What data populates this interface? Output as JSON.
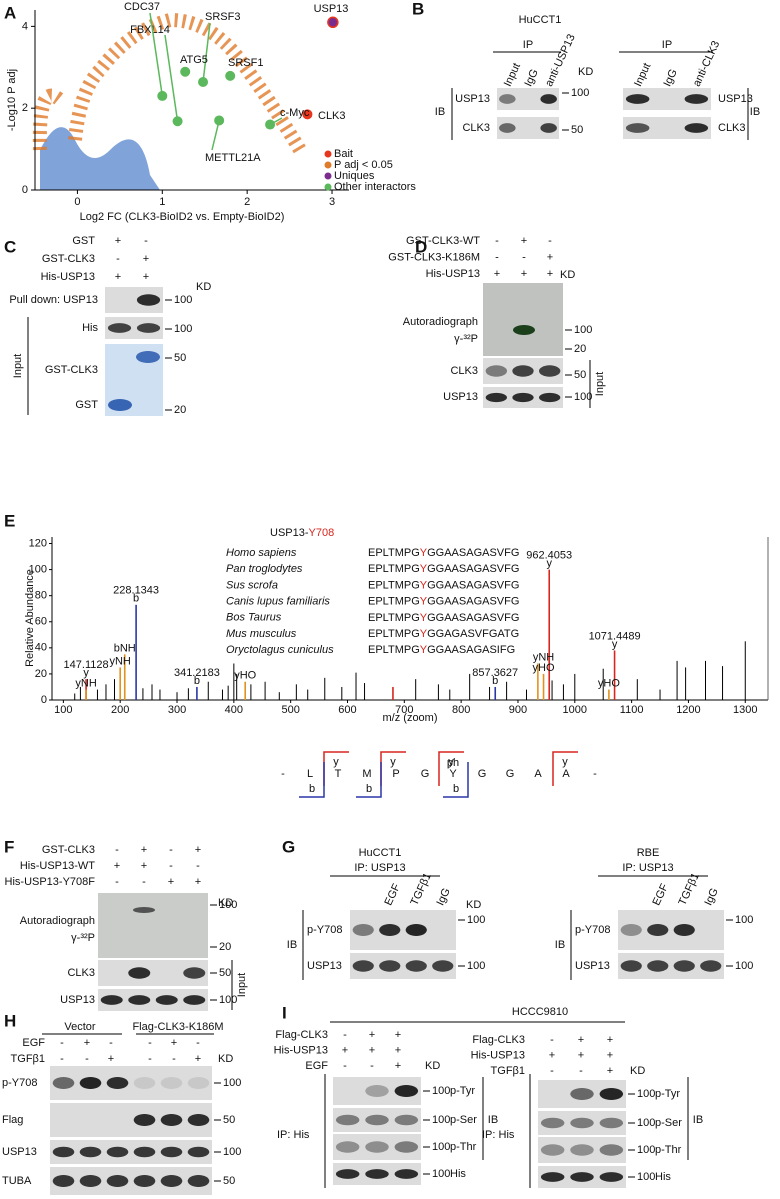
{
  "A": {
    "letter": "A",
    "chart": {
      "type": "scatter",
      "ylabel": "-Log10 P adj",
      "xlabel": "Log2 FC (CLK3-BioID2 vs. Empty-BioID2)",
      "xlim": [
        -0.5,
        3.2
      ],
      "ylim": [
        0,
        4.4
      ],
      "xticks": [
        0,
        1,
        2,
        3
      ],
      "yticks": [
        0,
        2,
        4
      ],
      "points": [
        {
          "name": "USP13",
          "x": 3.01,
          "y": 4.1,
          "color": "#7b2d8e"
        },
        {
          "name": "CLK3",
          "x": 2.71,
          "y": 1.85,
          "color": "#e8361e"
        },
        {
          "name": "c-Myc",
          "x": 2.27,
          "y": 1.6,
          "color": "#5cb85c"
        },
        {
          "name": "SRSF1",
          "x": 1.8,
          "y": 2.79,
          "color": "#5cb85c"
        },
        {
          "name": "SRSF3",
          "x": 1.48,
          "y": 2.64,
          "color": "#5cb85c"
        },
        {
          "name": "ATG5",
          "x": 1.27,
          "y": 2.89,
          "color": "#5cb85c"
        },
        {
          "name": "FBXL14",
          "x": 1.18,
          "y": 1.68,
          "color": "#5cb85c"
        },
        {
          "name": "CDC37",
          "x": 1.0,
          "y": 2.3,
          "color": "#5cb85c"
        },
        {
          "name": "METTL21A",
          "x": 1.67,
          "y": 1.7,
          "color": "#5cb85c"
        }
      ],
      "legend": [
        {
          "label": "Bait",
          "color": "#e8361e"
        },
        {
          "label": "P adj < 0.05",
          "color": "#e07b2a"
        },
        {
          "label": "Uniques",
          "color": "#7b2d8e"
        },
        {
          "label": "Other interactors",
          "color": "#5cb85c"
        }
      ]
    }
  },
  "B": {
    "letter": "B",
    "cell": "HuCCT1",
    "ip": [
      "IP",
      "IP"
    ],
    "lanes": [
      [
        "Input",
        "IgG",
        "anti-USP13"
      ],
      [
        "Input",
        "IgG",
        "anti-CLK3"
      ]
    ],
    "kd": "KD",
    "markers": [
      100,
      50
    ],
    "rows_left": [
      "USP13",
      "CLK3"
    ],
    "rows_right": [
      "USP13",
      "CLK3"
    ],
    "ib": [
      "IB",
      "IB"
    ]
  },
  "C": {
    "letter": "C",
    "conditions": [
      {
        "label": "GST",
        "signs": [
          "+",
          "-"
        ]
      },
      {
        "label": "GST-CLK3",
        "signs": [
          "-",
          "+"
        ]
      },
      {
        "label": "His-USP13",
        "signs": [
          "+",
          "+"
        ]
      }
    ],
    "kd": "KD",
    "pulldown": "Pull down: USP13",
    "his": "His",
    "gst_clk3": "GST-CLK3",
    "gst": "GST",
    "input": "Input",
    "markers": [
      100,
      100,
      50,
      20
    ]
  },
  "D": {
    "letter": "D",
    "conditions": [
      {
        "label": "GST-CLK3-WT",
        "signs": [
          "-",
          "+",
          "-"
        ]
      },
      {
        "label": "GST-CLK3-K186M",
        "signs": [
          "-",
          "-",
          "+"
        ]
      },
      {
        "label": "His-USP13",
        "signs": [
          "+",
          "+",
          "+"
        ]
      }
    ],
    "kd": "KD",
    "autorad": "Autoradiograph",
    "isotope": "γ-³²P",
    "markers": [
      100,
      20,
      50,
      100
    ],
    "rows": [
      "CLK3",
      "USP13"
    ],
    "input": "Input"
  },
  "E": {
    "letter": "E",
    "title_prefix": "USP13-",
    "title_site": "Y708",
    "alignment": [
      {
        "species": "Homo sapiens",
        "sequence": "EPLTMPGYGGAASAGASVFG"
      },
      {
        "species": "Pan troglodytes",
        "sequence": "EPLTMPGYGGAASAGASVFG"
      },
      {
        "species": "Sus scrofa",
        "sequence": "EPLTMPGYGGAASAGASVFG"
      },
      {
        "species": "Canis lupus familiaris",
        "sequence": "EPLTMPGYGGAASAGASVFG"
      },
      {
        "species": "Bos Taurus",
        "sequence": "EPLTMPGYGGAASAGASVFG"
      },
      {
        "species": "Mus musculus",
        "sequence": "EPLTMPGYGGAGASVFGATG"
      },
      {
        "species": "Oryctolagus cuniculus",
        "sequence": "EPLTMPGYGGAASAGASIFG"
      }
    ],
    "chart": {
      "type": "spectrum",
      "xlabel": "m/z (zoom)",
      "ylabel": "Relative Abundance",
      "xlim": [
        80,
        1340
      ],
      "ylim": [
        0,
        125
      ],
      "xticks": [
        100,
        200,
        300,
        400,
        500,
        600,
        700,
        800,
        900,
        1000,
        1100,
        1200,
        1300
      ],
      "yticks": [
        0,
        20,
        40,
        60,
        80,
        100,
        120
      ],
      "peak_series": [
        {
          "color": "#000000",
          "x": [
            120,
            130,
            160,
            175,
            190,
            240,
            256,
            270,
            300,
            320,
            355,
            380,
            390,
            400,
            405,
            430,
            455,
            480,
            510,
            530,
            560,
            590,
            615,
            630,
            720,
            760,
            780,
            815,
            850,
            880,
            915,
            960,
            980,
            1000,
            1050,
            1110,
            1150,
            1180,
            1195,
            1230,
            1260,
            1300
          ],
          "y": [
            5,
            10,
            8,
            12,
            16,
            9,
            12,
            8,
            6,
            9,
            14,
            8,
            11,
            28,
            20,
            12,
            14,
            6,
            12,
            8,
            17,
            10,
            21,
            13,
            16,
            12,
            8,
            20,
            10,
            14,
            8,
            15,
            12,
            20,
            24,
            16,
            8,
            30,
            25,
            30,
            26,
            45
          ]
        },
        {
          "color": "#d7261e",
          "x": [
            140,
            680,
            955,
            1070
          ],
          "y": [
            16,
            10,
            100,
            38
          ]
        },
        {
          "color": "#2a36a8",
          "x": [
            228,
            335,
            860
          ],
          "y": [
            73,
            10,
            10
          ]
        },
        {
          "color": "#e0921e",
          "x": [
            140,
            200,
            208,
            420,
            935,
            945,
            1060
          ],
          "y": [
            8,
            25,
            35,
            14,
            28,
            20,
            8
          ]
        }
      ],
      "annotations": [
        {
          "text": "b",
          "mass": "228.1343",
          "x": 228,
          "y": 73,
          "color": "#2a36a8"
        },
        {
          "text": "y",
          "mass": "962.4053",
          "x": 955,
          "y": 100,
          "color": "#d7261e"
        },
        {
          "text": "y",
          "mass": "1071.4489",
          "x": 1070,
          "y": 38,
          "color": "#d7261e"
        },
        {
          "text": "y",
          "mass": "147.1128",
          "x": 140,
          "y": 16,
          "color": "#d7261e"
        },
        {
          "text": "b",
          "mass": "341.2183",
          "x": 335,
          "y": 10,
          "color": "#2a36a8"
        },
        {
          "text": "b",
          "mass": "857.3627",
          "x": 860,
          "y": 10,
          "color": "#2a36a8"
        },
        {
          "text": "bNH",
          "x": 208,
          "y": 35,
          "color": "#e0921e"
        },
        {
          "text": "yNH",
          "x": 200,
          "y": 25,
          "color": "#e0921e"
        },
        {
          "text": "yNH",
          "x": 140,
          "y": 8,
          "color": "#e0921e"
        },
        {
          "text": "yHO",
          "x": 420,
          "y": 14,
          "color": "#e0921e"
        },
        {
          "text": "yNH",
          "x": 945,
          "y": 28,
          "color": "#e0921e"
        },
        {
          "text": "yHO",
          "x": 945,
          "y": 20,
          "color": "#e0921e"
        },
        {
          "text": "yHO",
          "x": 1060,
          "y": 8,
          "color": "#e0921e"
        }
      ]
    },
    "peptide": {
      "residues": [
        "-",
        "L",
        "T",
        "M",
        "P",
        "G",
        "Y",
        "G",
        "G",
        "A",
        "A",
        "-"
      ],
      "ph": "ph",
      "y_labels": [
        "y",
        "y",
        "y",
        "y"
      ],
      "b_labels": [
        "b",
        "b",
        "b"
      ]
    }
  },
  "F": {
    "letter": "F",
    "conditions": [
      {
        "label": "GST-CLK3",
        "signs": [
          "-",
          "+",
          "-",
          "+"
        ]
      },
      {
        "label": "His-USP13-WT",
        "signs": [
          "+",
          "+",
          "-",
          "-"
        ]
      },
      {
        "label": "His-USP13-Y708F",
        "signs": [
          "-",
          "-",
          "+",
          "+"
        ]
      }
    ],
    "kd": "KD",
    "autorad": "Autoradiograph",
    "isotope": "γ-³²P",
    "markers": [
      100,
      20,
      50,
      100
    ],
    "rows": [
      "CLK3",
      "USP13"
    ],
    "input": "Input"
  },
  "G": {
    "letter": "G",
    "blots": [
      {
        "cell": "HuCCT1",
        "ip": "IP: USP13",
        "lanes": [
          "EGF",
          "TGFβ1",
          "IgG"
        ],
        "kd": "KD",
        "ib": "IB",
        "rows": [
          "p-Y708",
          "USP13"
        ],
        "markers": [
          100,
          100
        ]
      },
      {
        "cell": "RBE",
        "ip": "IP: USP13",
        "lanes": [
          "EGF",
          "TGFβ1",
          "IgG"
        ],
        "ib": "IB",
        "rows": [
          "p-Y708",
          "USP13"
        ],
        "markers": [
          100,
          100
        ]
      }
    ]
  },
  "H": {
    "letter": "H",
    "groups": [
      "Vector",
      "Flag-CLK3-K186M"
    ],
    "conditions": [
      {
        "label": "EGF",
        "signs": [
          "-",
          "+",
          "-",
          "-",
          "+",
          "-"
        ]
      },
      {
        "label": "TGFβ1",
        "signs": [
          "-",
          "-",
          "+",
          "-",
          "-",
          "+"
        ]
      }
    ],
    "kd": "KD",
    "rows": [
      "p-Y708",
      "Flag",
      "USP13",
      "TUBA"
    ],
    "markers": [
      100,
      50,
      100,
      50
    ]
  },
  "I": {
    "letter": "I",
    "cell": "HCCC9810",
    "blots": [
      {
        "conditions": [
          {
            "label": "Flag-CLK3",
            "signs": [
              "-",
              "+",
              "+"
            ]
          },
          {
            "label": "His-USP13",
            "signs": [
              "+",
              "+",
              "+"
            ]
          },
          {
            "label": "EGF",
            "signs": [
              "-",
              "-",
              "+"
            ]
          }
        ],
        "kd": "KD",
        "ip": "IP: His",
        "ib": "IB",
        "rows": [
          "p-Tyr",
          "p-Ser",
          "p-Thr",
          "His"
        ],
        "markers": [
          100,
          100,
          100,
          100
        ]
      },
      {
        "conditions": [
          {
            "label": "Flag-CLK3",
            "signs": [
              "-",
              "+",
              "+"
            ]
          },
          {
            "label": "His-USP13",
            "signs": [
              "+",
              "+",
              "+"
            ]
          },
          {
            "label": "TGFβ1",
            "signs": [
              "-",
              "-",
              "+"
            ]
          }
        ],
        "kd": "KD",
        "ip": "IP: His",
        "ib": "IB",
        "rows": [
          "p-Tyr",
          "p-Ser",
          "p-Thr",
          "His"
        ],
        "markers": [
          100,
          100,
          100,
          100
        ]
      }
    ]
  }
}
